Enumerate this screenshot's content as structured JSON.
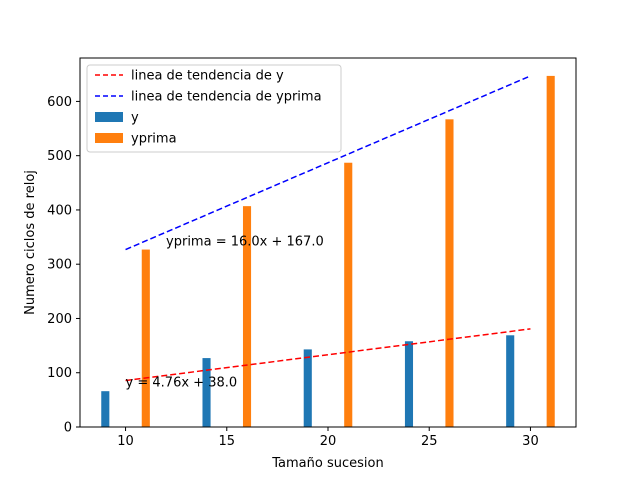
{
  "chart_data": {
    "type": "bar",
    "xlabel": "Tamaño sucesion",
    "ylabel": "Numero ciclos de reloj",
    "xlim": [
      7.75,
      32.25
    ],
    "ylim": [
      0,
      680
    ],
    "xticks": [
      10,
      15,
      20,
      25,
      30
    ],
    "yticks": [
      0,
      100,
      200,
      300,
      400,
      500,
      600
    ],
    "grid": false,
    "legend_position": "upper-left",
    "bar_width": 0.4,
    "series": [
      {
        "name": "y",
        "color": "#1f77b4",
        "x": [
          9,
          14,
          19,
          24,
          29
        ],
        "values": [
          66,
          127,
          143,
          158,
          169
        ]
      },
      {
        "name": "yprima",
        "color": "#ff7f0e",
        "x": [
          11,
          16,
          21,
          26,
          31
        ],
        "values": [
          327,
          407,
          487,
          567,
          647
        ]
      }
    ],
    "trend_lines": [
      {
        "name": "linea de tendencia de y",
        "color": "#ff0000",
        "style": "dashed",
        "slope": 4.76,
        "intercept": 38.0,
        "x_range": [
          10,
          30
        ],
        "equation": "y = 4.76x + 38.0",
        "equation_anchor": [
          10,
          67
        ]
      },
      {
        "name": "linea de tendencia de yprima",
        "color": "#0000ff",
        "style": "dashed",
        "slope": 16.0,
        "intercept": 167.0,
        "x_range": [
          10,
          30
        ],
        "equation": "yprima = 16.0x + 167.0",
        "equation_anchor": [
          12,
          327
        ]
      }
    ]
  }
}
